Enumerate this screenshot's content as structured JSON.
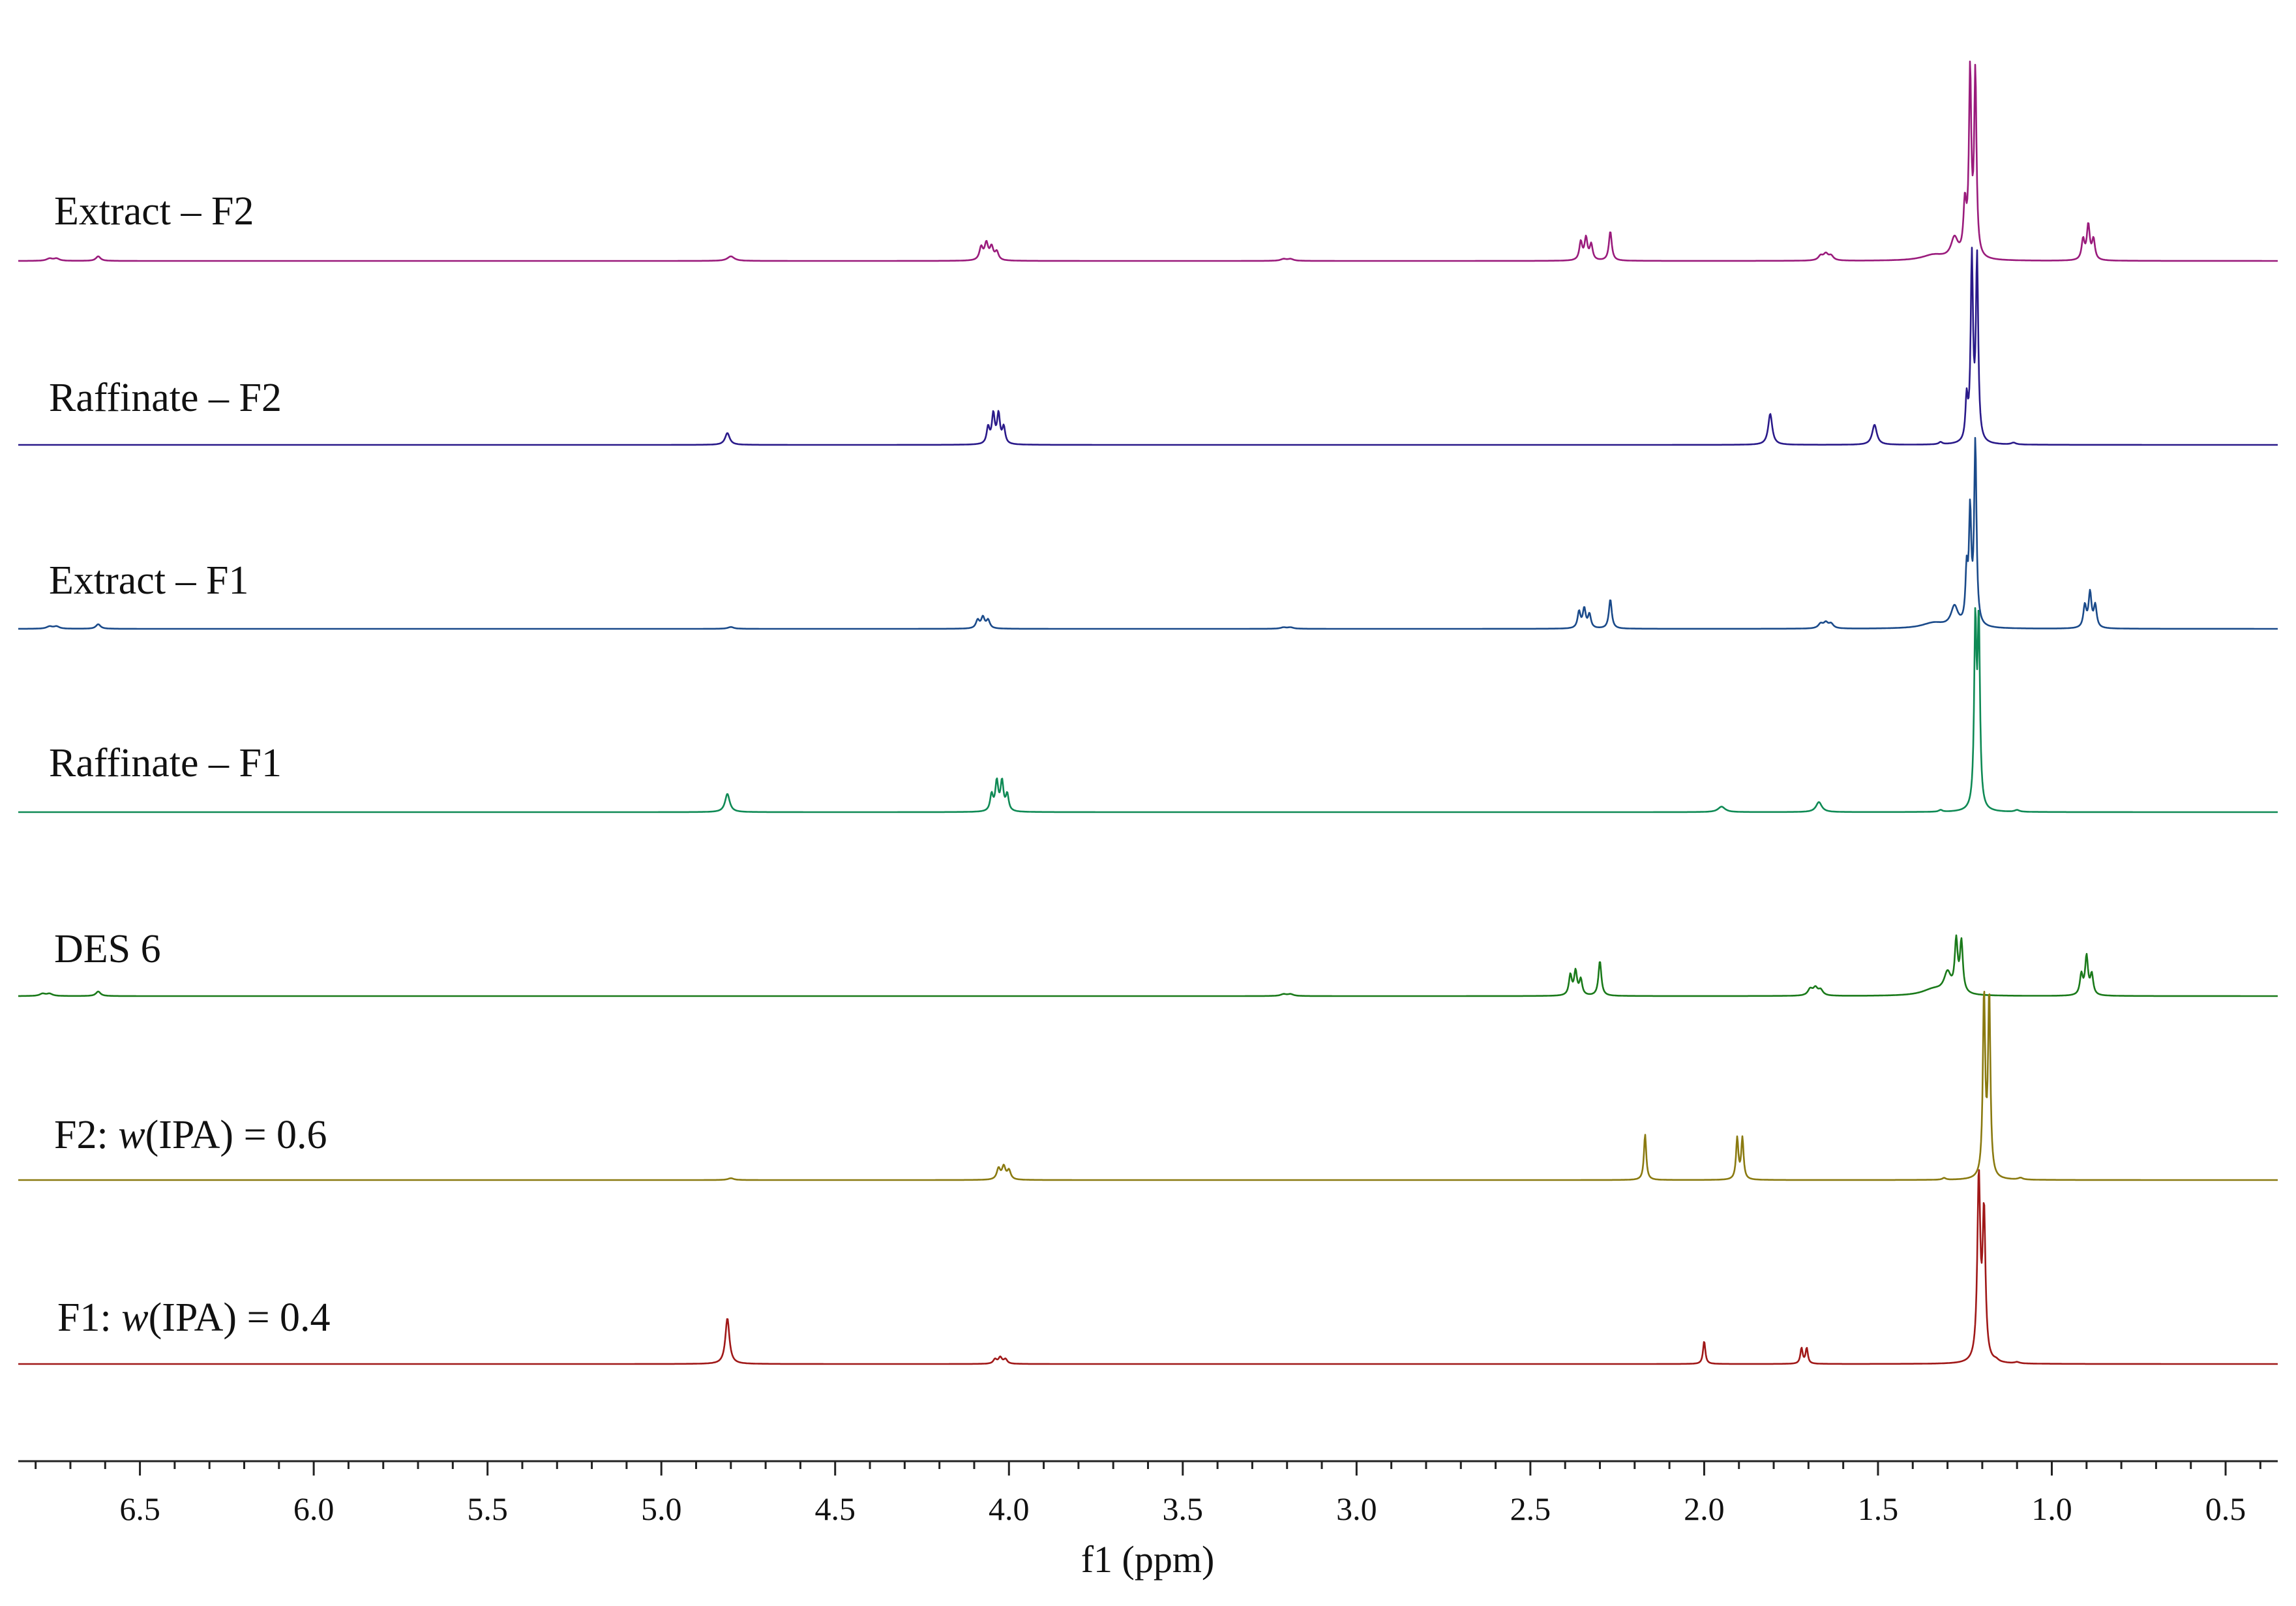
{
  "chart_data": {
    "type": "line",
    "xlabel": "f1 (ppm)",
    "xlim": [
      6.85,
      0.35
    ],
    "x_reversed": true,
    "xticks": [
      "6.5",
      "6.0",
      "5.5",
      "5.0",
      "4.5",
      "4.0",
      "3.5",
      "3.0",
      "2.5",
      "2.0",
      "1.5",
      "1.0",
      "0.5"
    ],
    "grid": false,
    "legend": "inline labels above each stacked trace",
    "series": [
      {
        "name": "Extract – F2",
        "label_parts": [
          {
            "text": "Extract – F2",
            "italic": false
          }
        ],
        "color": "#9a1b7c",
        "peaks": [
          [
            6.76,
            0.025,
            0.01
          ],
          [
            6.74,
            0.025,
            0.01
          ],
          [
            6.62,
            0.05,
            0.008
          ],
          [
            4.8,
            0.05,
            0.012
          ],
          [
            4.08,
            0.14,
            0.006
          ],
          [
            4.065,
            0.18,
            0.006
          ],
          [
            4.05,
            0.14,
            0.006
          ],
          [
            4.035,
            0.09,
            0.006
          ],
          [
            3.21,
            0.02,
            0.01
          ],
          [
            3.19,
            0.02,
            0.01
          ],
          [
            2.355,
            0.2,
            0.005
          ],
          [
            2.34,
            0.24,
            0.005
          ],
          [
            2.325,
            0.17,
            0.005
          ],
          [
            2.27,
            0.32,
            0.005
          ],
          [
            1.665,
            0.05,
            0.008
          ],
          [
            1.65,
            0.07,
            0.008
          ],
          [
            1.635,
            0.05,
            0.008
          ],
          [
            1.34,
            0.06,
            0.04
          ],
          [
            1.28,
            0.22,
            0.012
          ],
          [
            1.25,
            0.55,
            0.005
          ],
          [
            1.235,
            2.0,
            0.004
          ],
          [
            1.22,
            2.0,
            0.004
          ],
          [
            0.91,
            0.22,
            0.005
          ],
          [
            0.895,
            0.38,
            0.005
          ],
          [
            0.88,
            0.22,
            0.005
          ]
        ]
      },
      {
        "name": "Raffinate – F2",
        "label_parts": [
          {
            "text": "Raffinate – F2",
            "italic": false
          }
        ],
        "color": "#2a1a8a",
        "peaks": [
          [
            4.81,
            0.13,
            0.008
          ],
          [
            4.06,
            0.18,
            0.005
          ],
          [
            4.045,
            0.32,
            0.005
          ],
          [
            4.03,
            0.32,
            0.005
          ],
          [
            4.015,
            0.18,
            0.005
          ],
          [
            1.81,
            0.34,
            0.007
          ],
          [
            1.51,
            0.22,
            0.008
          ],
          [
            1.32,
            0.025,
            0.006
          ],
          [
            1.245,
            0.45,
            0.004
          ],
          [
            1.23,
            2.0,
            0.004
          ],
          [
            1.215,
            2.0,
            0.004
          ],
          [
            1.11,
            0.02,
            0.008
          ]
        ]
      },
      {
        "name": "Extract – F1",
        "label_parts": [
          {
            "text": "Extract – F1",
            "italic": false
          }
        ],
        "color": "#1a4a8a",
        "peaks": [
          [
            6.76,
            0.025,
            0.01
          ],
          [
            6.74,
            0.025,
            0.01
          ],
          [
            6.62,
            0.05,
            0.008
          ],
          [
            4.8,
            0.02,
            0.01
          ],
          [
            4.09,
            0.09,
            0.006
          ],
          [
            4.075,
            0.12,
            0.006
          ],
          [
            4.06,
            0.09,
            0.006
          ],
          [
            3.21,
            0.015,
            0.01
          ],
          [
            3.19,
            0.015,
            0.01
          ],
          [
            2.36,
            0.18,
            0.005
          ],
          [
            2.345,
            0.21,
            0.005
          ],
          [
            2.33,
            0.15,
            0.005
          ],
          [
            2.27,
            0.32,
            0.005
          ],
          [
            1.665,
            0.05,
            0.008
          ],
          [
            1.65,
            0.06,
            0.008
          ],
          [
            1.635,
            0.05,
            0.008
          ],
          [
            1.34,
            0.06,
            0.04
          ],
          [
            1.28,
            0.22,
            0.012
          ],
          [
            1.245,
            0.55,
            0.004
          ],
          [
            1.235,
            1.2,
            0.004
          ],
          [
            1.22,
            2.0,
            0.004
          ],
          [
            0.905,
            0.24,
            0.005
          ],
          [
            0.89,
            0.38,
            0.005
          ],
          [
            0.875,
            0.24,
            0.005
          ]
        ]
      },
      {
        "name": "Raffinate – F1",
        "label_parts": [
          {
            "text": "Raffinate – F1",
            "italic": false
          }
        ],
        "color": "#0f8a55",
        "peaks": [
          [
            4.81,
            0.2,
            0.008
          ],
          [
            4.05,
            0.18,
            0.005
          ],
          [
            4.035,
            0.32,
            0.005
          ],
          [
            4.02,
            0.32,
            0.005
          ],
          [
            4.005,
            0.18,
            0.005
          ],
          [
            1.95,
            0.06,
            0.012
          ],
          [
            1.67,
            0.11,
            0.01
          ],
          [
            1.32,
            0.02,
            0.006
          ],
          [
            1.22,
            2.0,
            0.004
          ],
          [
            1.21,
            2.0,
            0.004
          ],
          [
            1.1,
            0.02,
            0.008
          ]
        ]
      },
      {
        "name": "DES 6",
        "label_parts": [
          {
            "text": "DES 6",
            "italic": false
          }
        ],
        "color": "#1a7a1a",
        "peaks": [
          [
            6.78,
            0.025,
            0.01
          ],
          [
            6.76,
            0.025,
            0.01
          ],
          [
            6.62,
            0.05,
            0.008
          ],
          [
            3.21,
            0.02,
            0.01
          ],
          [
            3.19,
            0.02,
            0.01
          ],
          [
            2.385,
            0.22,
            0.005
          ],
          [
            2.37,
            0.26,
            0.005
          ],
          [
            2.355,
            0.17,
            0.005
          ],
          [
            2.3,
            0.38,
            0.005
          ],
          [
            1.695,
            0.07,
            0.008
          ],
          [
            1.68,
            0.08,
            0.008
          ],
          [
            1.665,
            0.06,
            0.008
          ],
          [
            1.34,
            0.07,
            0.04
          ],
          [
            1.3,
            0.22,
            0.012
          ],
          [
            1.275,
            0.55,
            0.005
          ],
          [
            1.26,
            0.55,
            0.005
          ],
          [
            0.915,
            0.22,
            0.005
          ],
          [
            0.9,
            0.42,
            0.005
          ],
          [
            0.885,
            0.22,
            0.005
          ]
        ]
      },
      {
        "name": "F2: w(IPA) = 0.6",
        "label_parts": [
          {
            "text": "F2: ",
            "italic": false
          },
          {
            "text": "w",
            "italic": true
          },
          {
            "text": "(IPA) = 0.6",
            "italic": false
          }
        ],
        "color": "#8a7a10",
        "peaks": [
          [
            4.8,
            0.02,
            0.01
          ],
          [
            4.03,
            0.12,
            0.006
          ],
          [
            4.015,
            0.14,
            0.006
          ],
          [
            4.0,
            0.1,
            0.006
          ],
          [
            2.17,
            0.5,
            0.004
          ],
          [
            1.905,
            0.45,
            0.004
          ],
          [
            1.89,
            0.45,
            0.004
          ],
          [
            1.31,
            0.02,
            0.006
          ],
          [
            1.195,
            2.0,
            0.004
          ],
          [
            1.18,
            2.0,
            0.004
          ],
          [
            1.09,
            0.02,
            0.008
          ]
        ]
      },
      {
        "name": "F1: w(IPA) = 0.4",
        "label_parts": [
          {
            "text": "F1: ",
            "italic": false
          },
          {
            "text": "w",
            "italic": true
          },
          {
            "text": "(IPA) = 0.4",
            "italic": false
          }
        ],
        "color": "#a01818",
        "peaks": [
          [
            4.81,
            0.5,
            0.007
          ],
          [
            4.04,
            0.05,
            0.006
          ],
          [
            4.025,
            0.07,
            0.006
          ],
          [
            4.01,
            0.05,
            0.006
          ],
          [
            2.0,
            0.25,
            0.004
          ],
          [
            1.72,
            0.17,
            0.004
          ],
          [
            1.705,
            0.17,
            0.004
          ],
          [
            1.21,
            2.0,
            0.005
          ],
          [
            1.195,
            1.6,
            0.005
          ],
          [
            1.16,
            0.02,
            0.008
          ],
          [
            1.1,
            0.015,
            0.008
          ]
        ]
      }
    ]
  }
}
